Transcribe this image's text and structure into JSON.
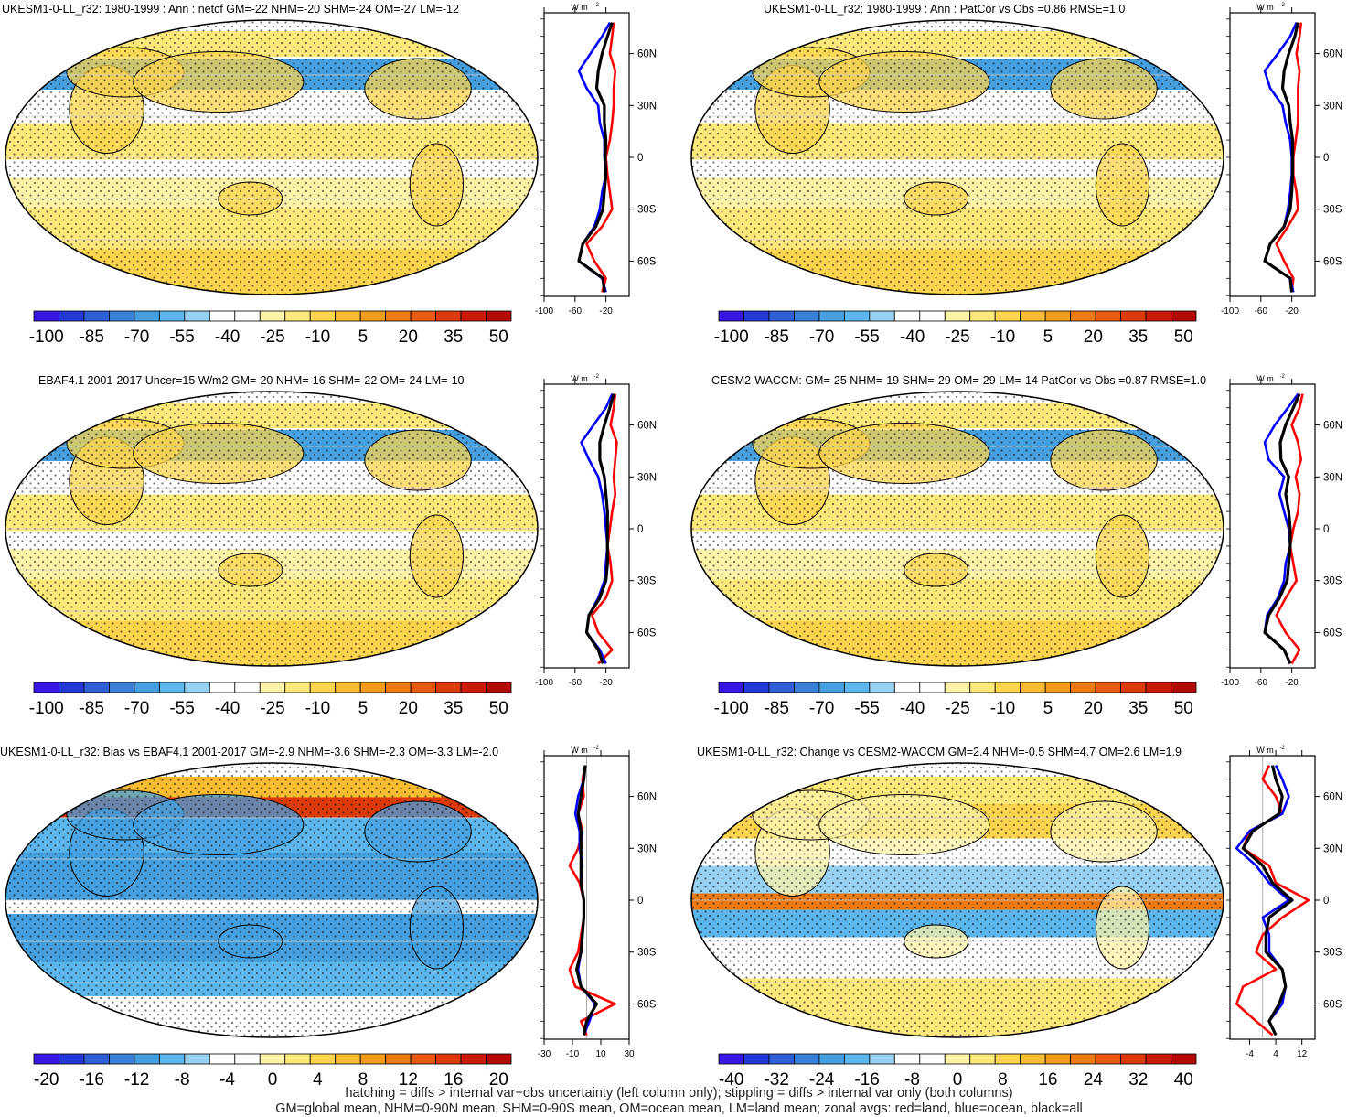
{
  "palette": [
    "#3a16e6",
    "#2438d8",
    "#2f5ed6",
    "#3a7fd8",
    "#46a0e0",
    "#5cb8ec",
    "#98d2f2",
    "#ffffff",
    "#ffffff",
    "#fdf3a8",
    "#fde87a",
    "#fcd44e",
    "#f8bc33",
    "#f39c1c",
    "#ee7a14",
    "#e75a10",
    "#dd3a0c",
    "#cc1a0a",
    "#b20806"
  ],
  "zonal_colors": {
    "land": "#ff0000",
    "ocean": "#0000ff",
    "all": "#000000"
  },
  "lat_ticks": [
    "60N",
    "30N",
    "0",
    "30S",
    "60S"
  ],
  "zonal_unit": "W m",
  "zonal_unit_sup": "-2",
  "chart_data": [
    {
      "id": "p1",
      "type": "map",
      "title": "UKESM1-0-LL_r32: 1980-1999 : Ann : netcf GM=-22 NHM=-20 SHM=-24 OM=-27 LM=-12",
      "colorbar_labels": [
        "-100",
        "-85",
        "-70",
        "-55",
        "-40",
        "-25",
        "-10",
        "5",
        "20",
        "35",
        "50"
      ],
      "zonal_x_ticks": [
        "-100",
        "-60",
        "-20"
      ],
      "zonal_xlim": [
        -100,
        10
      ],
      "zonal_lat": [
        -78,
        -70,
        -60,
        -50,
        -40,
        -30,
        -20,
        -10,
        0,
        10,
        20,
        30,
        40,
        50,
        60,
        70,
        78
      ],
      "zonal_land": [
        -25,
        -20,
        -35,
        -45,
        -25,
        -12,
        -15,
        -18,
        -20,
        -15,
        -12,
        -10,
        -10,
        -8,
        -15,
        -12,
        -10
      ],
      "zonal_ocean": [
        -20,
        -25,
        -55,
        -50,
        -35,
        -28,
        -25,
        -20,
        -22,
        -22,
        -28,
        -30,
        -45,
        -55,
        -40,
        -25,
        -15
      ],
      "zonal_all": [
        -22,
        -24,
        -55,
        -50,
        -33,
        -24,
        -22,
        -20,
        -21,
        -20,
        -22,
        -22,
        -32,
        -30,
        -25,
        -18,
        -12
      ]
    },
    {
      "id": "p2",
      "type": "map",
      "title": "UKESM1-0-LL_r32: 1980-1999 : Ann : PatCor vs Obs =0.86 RMSE=1.0",
      "colorbar_labels": [
        "-100",
        "-85",
        "-70",
        "-55",
        "-40",
        "-25",
        "-10",
        "5",
        "20",
        "35",
        "50"
      ],
      "zonal_x_ticks": [
        "-100",
        "-60",
        "-20"
      ],
      "zonal_xlim": [
        -100,
        10
      ],
      "zonal_lat": [
        -78,
        -70,
        -60,
        -50,
        -40,
        -30,
        -20,
        -10,
        0,
        10,
        20,
        30,
        40,
        50,
        60,
        70,
        78
      ],
      "zonal_land": [
        -20,
        -18,
        -30,
        -40,
        -25,
        -12,
        -14,
        -18,
        -18,
        -15,
        -12,
        -12,
        -12,
        -10,
        -14,
        -10,
        -8
      ],
      "zonal_ocean": [
        -18,
        -22,
        -55,
        -48,
        -30,
        -25,
        -22,
        -20,
        -20,
        -22,
        -28,
        -32,
        -48,
        -55,
        -38,
        -22,
        -14
      ],
      "zonal_all": [
        -20,
        -22,
        -55,
        -48,
        -30,
        -22,
        -20,
        -19,
        -19,
        -19,
        -22,
        -24,
        -32,
        -30,
        -24,
        -16,
        -12
      ]
    },
    {
      "id": "p3",
      "type": "map",
      "title": "EBAF4.1 2001-2017 Uncer=15 W/m2 GM=-20 NHM=-16 SHM=-22 OM=-24 LM=-10",
      "colorbar_labels": [
        "-100",
        "-85",
        "-70",
        "-55",
        "-40",
        "-25",
        "-10",
        "5",
        "20",
        "35",
        "50"
      ],
      "zonal_x_ticks": [
        "-100",
        "-60",
        "-20"
      ],
      "zonal_xlim": [
        -100,
        10
      ],
      "zonal_lat": [
        -78,
        -70,
        -60,
        -50,
        -40,
        -30,
        -20,
        -10,
        0,
        10,
        20,
        30,
        40,
        50,
        60,
        70,
        78
      ],
      "zonal_land": [
        -30,
        -12,
        -30,
        -38,
        -20,
        -12,
        -14,
        -18,
        -15,
        -12,
        -8,
        -10,
        -8,
        -6,
        -14,
        -10,
        -8
      ],
      "zonal_ocean": [
        -20,
        -28,
        -45,
        -42,
        -30,
        -22,
        -20,
        -18,
        -20,
        -22,
        -25,
        -30,
        -42,
        -52,
        -36,
        -20,
        -12
      ],
      "zonal_all": [
        -24,
        -30,
        -45,
        -42,
        -28,
        -20,
        -18,
        -18,
        -18,
        -18,
        -20,
        -22,
        -28,
        -28,
        -22,
        -15,
        -10
      ]
    },
    {
      "id": "p4",
      "type": "map",
      "title": "CESM2-WACCM: GM=-25 NHM=-19 SHM=-29 OM=-29 LM=-14 PatCor vs Obs =0.87 RMSE=1.0",
      "colorbar_labels": [
        "-100",
        "-85",
        "-70",
        "-55",
        "-40",
        "-25",
        "-10",
        "5",
        "20",
        "35",
        "50"
      ],
      "zonal_x_ticks": [
        "-100",
        "-60",
        "-20"
      ],
      "zonal_xlim": [
        -100,
        10
      ],
      "zonal_lat": [
        -78,
        -70,
        -60,
        -50,
        -40,
        -30,
        -20,
        -10,
        0,
        10,
        20,
        30,
        40,
        50,
        60,
        70,
        78
      ],
      "zonal_land": [
        -20,
        -10,
        -28,
        -40,
        -28,
        -14,
        -18,
        -22,
        -18,
        -12,
        -10,
        -15,
        -8,
        -12,
        -20,
        -10,
        -6
      ],
      "zonal_ocean": [
        -22,
        -30,
        -55,
        -52,
        -38,
        -30,
        -28,
        -22,
        -24,
        -30,
        -36,
        -30,
        -50,
        -55,
        -42,
        -25,
        -12
      ],
      "zonal_all": [
        -22,
        -30,
        -55,
        -50,
        -36,
        -26,
        -24,
        -22,
        -22,
        -24,
        -28,
        -24,
        -34,
        -35,
        -28,
        -18,
        -10
      ]
    },
    {
      "id": "p5",
      "type": "map",
      "title": "UKESM1-0-LL_r32: Bias vs EBAF4.1 2001-2017 GM=-2.9 NHM=-3.6 SHM=-2.3 OM=-3.3 LM=-2.0",
      "colorbar_labels": [
        "-20",
        "-16",
        "-12",
        "-8",
        "-4",
        "0",
        "4",
        "8",
        "12",
        "16",
        "20"
      ],
      "zonal_x_ticks": [
        "-30",
        "-10",
        "10",
        "30"
      ],
      "zonal_xlim": [
        -30,
        30
      ],
      "zonal_lat": [
        -78,
        -70,
        -60,
        -50,
        -40,
        -30,
        -20,
        -10,
        0,
        10,
        20,
        30,
        40,
        50,
        60,
        70,
        78
      ],
      "zonal_land": [
        0,
        -4,
        20,
        -8,
        -12,
        -6,
        -4,
        -2,
        -2,
        -5,
        -12,
        -6,
        -3,
        -6,
        -2,
        -3,
        -1
      ],
      "zonal_ocean": [
        -2,
        2,
        6,
        -4,
        -6,
        -4,
        -3,
        -2,
        -2,
        -4,
        -3,
        -5,
        -5,
        -8,
        -6,
        -2,
        -1
      ],
      "zonal_all": [
        -2,
        0,
        7,
        -4,
        -7,
        -4,
        -3,
        -2,
        -2,
        -4,
        -4,
        -4,
        -4,
        -6,
        -4,
        -2,
        -1
      ]
    },
    {
      "id": "p6",
      "type": "map",
      "title": "UKESM1-0-LL_r32: Change vs CESM2-WACCM GM=2.4 NHM=-0.5 SHM=4.7 OM=2.6 LM=1.9",
      "colorbar_labels": [
        "-40",
        "-32",
        "-24",
        "-16",
        "-8",
        "0",
        "8",
        "16",
        "24",
        "32",
        "40"
      ],
      "zonal_x_ticks": [
        "-4",
        "4",
        "12"
      ],
      "zonal_xlim": [
        -10,
        16
      ],
      "zonal_lat": [
        -78,
        -70,
        -60,
        -50,
        -40,
        -30,
        -20,
        -10,
        0,
        10,
        20,
        30,
        40,
        50,
        60,
        70,
        78
      ],
      "zonal_land": [
        3,
        -2,
        -8,
        -6,
        4,
        -2,
        0,
        6,
        14,
        4,
        2,
        -6,
        -4,
        6,
        4,
        0,
        2
      ],
      "zonal_ocean": [
        4,
        2,
        6,
        7,
        6,
        2,
        2,
        0,
        8,
        2,
        -2,
        -8,
        -4,
        6,
        8,
        6,
        4
      ],
      "zonal_all": [
        4,
        2,
        5,
        7,
        6,
        1,
        1,
        2,
        9,
        3,
        0,
        -6,
        -3,
        5,
        6,
        4,
        3
      ]
    }
  ],
  "footnote_line1": "hatching = diffs > internal var+obs uncertainty (left column only); stippling = diffs > internal var only (both columns)",
  "footnote_line2": "GM=global mean, NHM=0-90N mean, SHM=0-90S mean, OM=ocean mean, LM=land mean; zonal avgs: red=land, blue=ocean, black=all"
}
